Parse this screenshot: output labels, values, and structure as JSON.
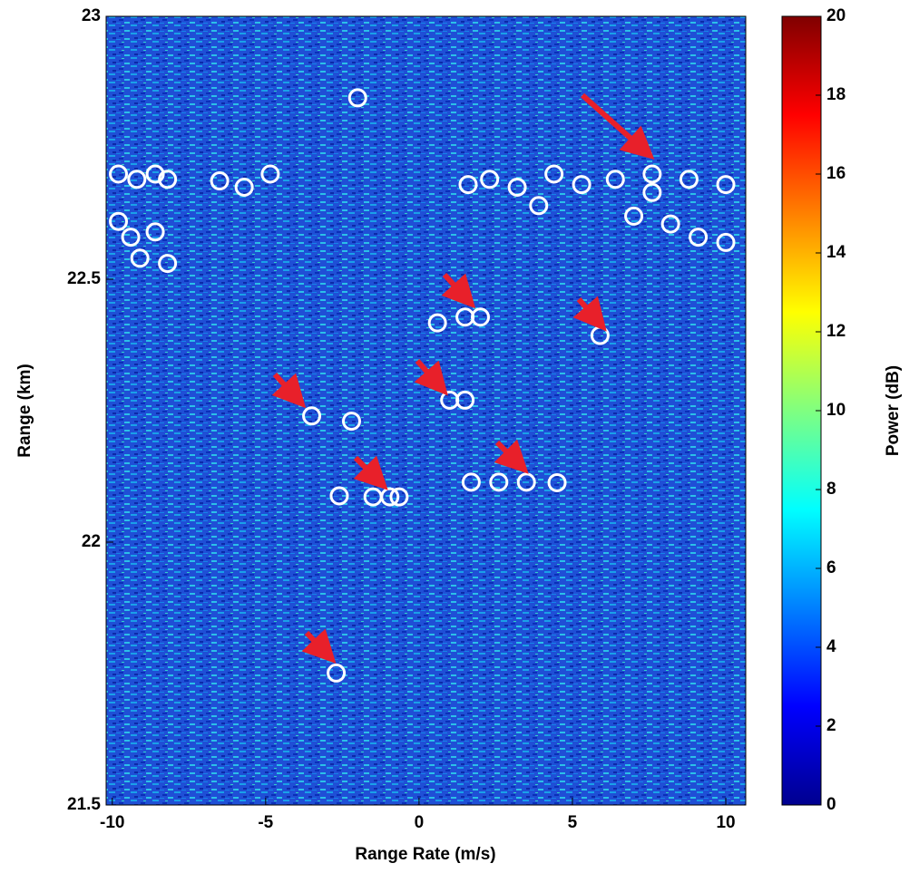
{
  "chart_data": {
    "type": "scatter",
    "xlabel": "Range Rate (m/s)",
    "ylabel": "Range (km)",
    "xlim": [
      -10.2,
      10.65
    ],
    "ylim": [
      21.5,
      23
    ],
    "xticks": [
      -10,
      -5,
      0,
      5,
      10
    ],
    "yticks": [
      {
        "value": 21.5,
        "label": "21.5"
      },
      22,
      {
        "value": 22.5,
        "label": "22.5"
      },
      23
    ],
    "marker_color": "#ffffff",
    "x": [
      -2.0,
      -6.5,
      -5.7,
      -4.85,
      -9.8,
      -9.2,
      -8.6,
      -8.2,
      -9.8,
      -9.4,
      -8.6,
      -8.2,
      -9.1,
      1.6,
      2.3,
      3.2,
      3.9,
      4.4,
      5.3,
      6.4,
      7.6,
      8.8,
      10.0,
      7.0,
      8.2,
      9.1,
      10.0,
      7.6,
      0.6,
      1.5,
      2.0,
      5.9,
      -3.5,
      -2.2,
      1.0,
      1.5,
      -2.6,
      -1.5,
      -0.95,
      -0.65,
      1.7,
      2.6,
      3.5,
      4.5,
      -2.7
    ],
    "y": [
      22.845,
      22.687,
      22.675,
      22.7,
      22.7,
      22.69,
      22.7,
      22.69,
      22.61,
      22.58,
      22.59,
      22.53,
      22.54,
      22.68,
      22.69,
      22.675,
      22.64,
      22.7,
      22.68,
      22.69,
      22.7,
      22.69,
      22.68,
      22.62,
      22.605,
      22.58,
      22.57,
      22.665,
      22.417,
      22.428,
      22.428,
      22.393,
      22.24,
      22.23,
      22.27,
      22.27,
      22.088,
      22.086,
      22.086,
      22.086,
      22.114,
      22.114,
      22.114,
      22.113,
      21.751
    ],
    "colorbar": {
      "label": "Power (dB)",
      "lim": [
        0,
        20
      ],
      "ticks": [
        0,
        2,
        4,
        6,
        8,
        10,
        12,
        14,
        16,
        18,
        20
      ],
      "colormap": "jet"
    }
  }
}
